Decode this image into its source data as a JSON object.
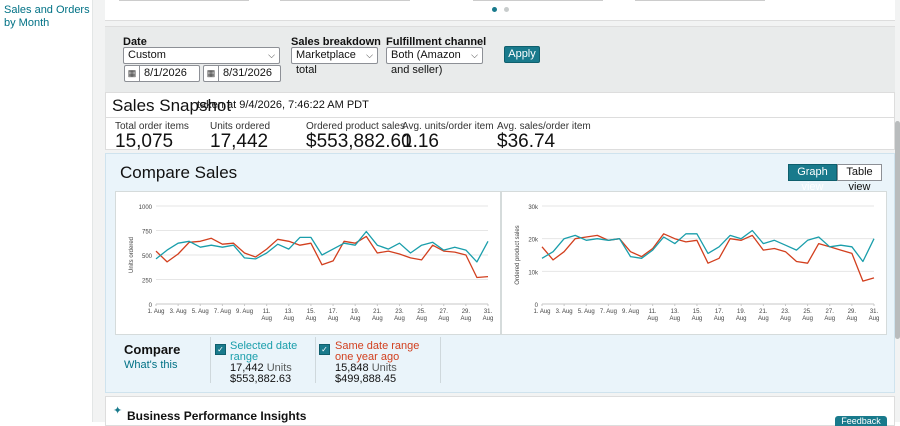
{
  "sidebar": {
    "link": "Sales and Orders by Month"
  },
  "filters": {
    "date_label": "Date",
    "date_range_value": "Custom",
    "start_date": "8/1/2026",
    "end_date": "8/31/2026",
    "breakdown_label": "Sales breakdown",
    "breakdown_value": "Marketplace total",
    "channel_label": "Fulfillment channel",
    "channel_value": "Both (Amazon and seller)",
    "apply_label": "Apply"
  },
  "snapshot": {
    "title": "Sales Snapshot",
    "taken": "taken at 9/4/2026, 7:46:22 AM PDT",
    "metrics": [
      {
        "label": "Total order items",
        "value": "15,075"
      },
      {
        "label": "Units ordered",
        "value": "17,442"
      },
      {
        "label": "Ordered product sales",
        "value": "$553,882.60"
      },
      {
        "label": "Avg. units/order item",
        "value": "1.16"
      },
      {
        "label": "Avg. sales/order item",
        "value": "$36.74"
      }
    ]
  },
  "compare": {
    "title": "Compare Sales",
    "graph_view_label": "Graph view",
    "table_view_label": "Table view",
    "legend_title": "Compare",
    "whats_this": "What's this",
    "selected": {
      "name": "Selected date range",
      "units": "17,442",
      "units_word": "Units",
      "sales": "$553,882.63"
    },
    "prior": {
      "name": "Same date range one year ago",
      "units": "15,848",
      "units_word": "Units",
      "sales": "$499,888.45"
    }
  },
  "insights": {
    "title": "Business Performance Insights",
    "feedback": "Feedback"
  },
  "colors": {
    "selected": "#1a9eab",
    "prior": "#d23f1e",
    "accent": "#197a8c",
    "link": "#007185"
  },
  "chart_data": [
    {
      "type": "line",
      "ylabel": "Units ordered",
      "ylim": [
        0,
        1000
      ],
      "yticks": [
        "0",
        "250",
        "500",
        "750",
        "1000"
      ],
      "xtick_labels": [
        "1. Aug",
        "3. Aug",
        "5. Aug",
        "7. Aug",
        "9. Aug",
        "11. Aug",
        "13. Aug",
        "15. Aug",
        "17. Aug",
        "19. Aug",
        "21. Aug",
        "23. Aug",
        "25. Aug",
        "27. Aug",
        "29. Aug",
        "31. Aug"
      ],
      "x": [
        1,
        2,
        3,
        4,
        5,
        6,
        7,
        8,
        9,
        10,
        11,
        12,
        13,
        14,
        15,
        16,
        17,
        18,
        19,
        20,
        21,
        22,
        23,
        24,
        25,
        26,
        27,
        28,
        29,
        30,
        31
      ],
      "series": [
        {
          "name": "Selected date range",
          "color": "#1a9eab",
          "values": [
            460,
            550,
            620,
            640,
            580,
            600,
            580,
            600,
            470,
            460,
            520,
            610,
            560,
            680,
            680,
            500,
            560,
            620,
            600,
            740,
            600,
            560,
            620,
            520,
            600,
            630,
            550,
            580,
            550,
            430,
            640
          ]
        },
        {
          "name": "Same date range one year ago",
          "color": "#d23f1e",
          "values": [
            540,
            430,
            510,
            630,
            640,
            670,
            610,
            620,
            520,
            480,
            560,
            660,
            640,
            600,
            620,
            400,
            440,
            640,
            620,
            690,
            520,
            540,
            510,
            470,
            450,
            600,
            540,
            530,
            500,
            270,
            280
          ]
        }
      ]
    },
    {
      "type": "line",
      "ylabel": "Ordered product sales",
      "ylim": [
        0,
        30000
      ],
      "yticks": [
        "0",
        "10k",
        "20k",
        "30k"
      ],
      "xtick_labels": [
        "1. Aug",
        "3. Aug",
        "5. Aug",
        "7. Aug",
        "9. Aug",
        "11. Aug",
        "13. Aug",
        "15. Aug",
        "17. Aug",
        "19. Aug",
        "21. Aug",
        "23. Aug",
        "25. Aug",
        "27. Aug",
        "29. Aug",
        "31. Aug"
      ],
      "x": [
        1,
        2,
        3,
        4,
        5,
        6,
        7,
        8,
        9,
        10,
        11,
        12,
        13,
        14,
        15,
        16,
        17,
        18,
        19,
        20,
        21,
        22,
        23,
        24,
        25,
        26,
        27,
        28,
        29,
        30,
        31
      ],
      "series": [
        {
          "name": "Selected date range",
          "color": "#1a9eab",
          "values": [
            14000,
            16000,
            20000,
            21000,
            19500,
            20000,
            19500,
            20000,
            14500,
            14000,
            16500,
            20500,
            18500,
            21500,
            21500,
            15500,
            17500,
            21000,
            20000,
            22500,
            18500,
            19500,
            18000,
            16500,
            19500,
            20500,
            17500,
            18000,
            17500,
            13000,
            20000
          ]
        },
        {
          "name": "Same date range one year ago",
          "color": "#d23f1e",
          "values": [
            17500,
            13500,
            16000,
            20000,
            20500,
            21000,
            19500,
            20000,
            16000,
            14500,
            17000,
            21500,
            20000,
            19000,
            19500,
            12500,
            14000,
            20000,
            19500,
            21000,
            16500,
            17000,
            16000,
            13000,
            12500,
            18500,
            17500,
            16500,
            15500,
            7000,
            8000
          ]
        }
      ]
    }
  ]
}
